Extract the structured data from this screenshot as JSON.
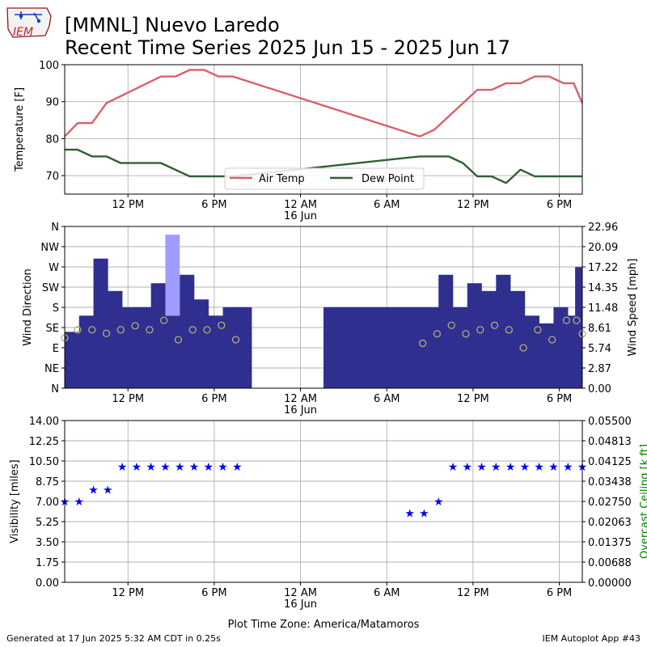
{
  "header": {
    "title_line1": "[MMNL] Nuevo Laredo",
    "title_line2": "Recent Time Series 2025 Jun 15 - 2025 Jun 17",
    "logo_text": "IEM"
  },
  "footer": {
    "generated": "Generated at 17 Jun 2025 5:32 AM CDT in 0.25s",
    "app": "IEM Autoplot App #43",
    "timezone_label": "Plot Time Zone: America/Matamoros"
  },
  "chart_data": [
    {
      "type": "line",
      "ylabel": "Temperature [F]",
      "ylim": [
        65,
        100
      ],
      "yticks": [
        70,
        80,
        90,
        100
      ],
      "x_hours": [
        7.6,
        43.6
      ],
      "xticks": [
        {
          "hour": 12,
          "label": "12 PM"
        },
        {
          "hour": 18,
          "label": "6 PM"
        },
        {
          "hour": 24,
          "label": "12 AM",
          "sublabel": "16 Jun"
        },
        {
          "hour": 30,
          "label": "6 AM"
        },
        {
          "hour": 36,
          "label": "12 PM"
        },
        {
          "hour": 42,
          "label": "6 PM"
        }
      ],
      "grid": true,
      "legend_position": "bottom-center",
      "series": [
        {
          "name": "Air Temp",
          "color": "#d9606a",
          "points": [
            [
              7.6,
              80.6
            ],
            [
              8.5,
              84.2
            ],
            [
              9.5,
              84.2
            ],
            [
              10.5,
              89.6
            ],
            [
              14.3,
              96.8
            ],
            [
              15.3,
              96.8
            ],
            [
              16.3,
              98.6
            ],
            [
              17.3,
              98.6
            ],
            [
              18.3,
              96.8
            ],
            [
              19.3,
              96.8
            ],
            [
              32.3,
              80.6
            ],
            [
              33.3,
              82.4
            ],
            [
              36.3,
              93.2
            ],
            [
              37.3,
              93.2
            ],
            [
              38.3,
              95.0
            ],
            [
              39.3,
              95.0
            ],
            [
              40.3,
              96.8
            ],
            [
              41.3,
              96.8
            ],
            [
              42.3,
              95.0
            ],
            [
              43.0,
              95.0
            ],
            [
              43.6,
              89.6
            ]
          ]
        },
        {
          "name": "Dew Point",
          "color": "#2f6131",
          "points": [
            [
              7.6,
              77.0
            ],
            [
              8.5,
              77.0
            ],
            [
              9.5,
              75.2
            ],
            [
              10.5,
              75.2
            ],
            [
              11.5,
              73.4
            ],
            [
              14.3,
              73.4
            ],
            [
              16.3,
              69.8
            ],
            [
              19.3,
              69.8
            ],
            [
              32.3,
              75.2
            ],
            [
              34.3,
              75.2
            ],
            [
              35.3,
              73.4
            ],
            [
              36.3,
              69.8
            ],
            [
              37.3,
              69.8
            ],
            [
              38.3,
              68.0
            ],
            [
              39.3,
              71.6
            ],
            [
              40.3,
              69.8
            ],
            [
              43.6,
              69.8
            ]
          ]
        }
      ]
    },
    {
      "type": "bar",
      "ylabel": "Wind Direction",
      "y2label": "Wind Speed [mph]",
      "direction_ticks": [
        "N",
        "NE",
        "E",
        "SE",
        "S",
        "SW",
        "W",
        "NW",
        "N"
      ],
      "ylim": [
        0,
        22.96
      ],
      "speed_ticks": [
        "0.00",
        "2.87",
        "5.74",
        "8.61",
        "11.48",
        "14.35",
        "17.22",
        "20.09",
        "22.96"
      ],
      "grid": true,
      "bar_color": "#2f2f8f",
      "gust_color": "#a09cff",
      "wind_bars": [
        {
          "start": 7.6,
          "end": 8.1,
          "speed": 8.0
        },
        {
          "start": 8.1,
          "end": 8.6,
          "speed": 8.0
        },
        {
          "start": 8.6,
          "end": 9.6,
          "speed": 10.3
        },
        {
          "start": 9.6,
          "end": 10.6,
          "speed": 18.4
        },
        {
          "start": 10.6,
          "end": 11.6,
          "speed": 13.8
        },
        {
          "start": 11.6,
          "end": 12.6,
          "speed": 11.5
        },
        {
          "start": 12.6,
          "end": 13.6,
          "speed": 11.5
        },
        {
          "start": 13.6,
          "end": 14.6,
          "speed": 14.9
        },
        {
          "start": 14.6,
          "end": 15.6,
          "speed": 10.3
        },
        {
          "start": 15.6,
          "end": 16.6,
          "speed": 16.1
        },
        {
          "start": 16.6,
          "end": 17.6,
          "speed": 12.6
        },
        {
          "start": 17.6,
          "end": 18.6,
          "speed": 10.3
        },
        {
          "start": 18.6,
          "end": 19.6,
          "speed": 11.5
        },
        {
          "start": 19.6,
          "end": 20.6,
          "speed": 11.5
        },
        {
          "start": 25.6,
          "end": 33.6,
          "speed": 11.5
        },
        {
          "start": 33.6,
          "end": 34.6,
          "speed": 16.1
        },
        {
          "start": 34.6,
          "end": 35.6,
          "speed": 11.5
        },
        {
          "start": 35.6,
          "end": 36.6,
          "speed": 14.9
        },
        {
          "start": 36.6,
          "end": 37.6,
          "speed": 13.8
        },
        {
          "start": 37.6,
          "end": 38.6,
          "speed": 16.1
        },
        {
          "start": 38.6,
          "end": 39.6,
          "speed": 13.8
        },
        {
          "start": 39.6,
          "end": 40.6,
          "speed": 10.3
        },
        {
          "start": 40.6,
          "end": 41.6,
          "speed": 9.2
        },
        {
          "start": 41.6,
          "end": 42.6,
          "speed": 11.5
        },
        {
          "start": 42.6,
          "end": 43.1,
          "speed": 10.3
        },
        {
          "start": 43.1,
          "end": 43.6,
          "speed": 17.2
        }
      ],
      "gust_bars": [
        {
          "start": 14.6,
          "end": 15.6,
          "low": 10.3,
          "high": 21.8
        }
      ],
      "direction_points": [
        {
          "hour": 7.6,
          "deg": 112
        },
        {
          "hour": 8.5,
          "deg": 130
        },
        {
          "hour": 9.5,
          "deg": 130
        },
        {
          "hour": 10.5,
          "deg": 122
        },
        {
          "hour": 11.5,
          "deg": 130
        },
        {
          "hour": 12.5,
          "deg": 139
        },
        {
          "hour": 13.5,
          "deg": 130
        },
        {
          "hour": 14.5,
          "deg": 151
        },
        {
          "hour": 15.5,
          "deg": 108
        },
        {
          "hour": 16.5,
          "deg": 130
        },
        {
          "hour": 17.5,
          "deg": 130
        },
        {
          "hour": 18.5,
          "deg": 140
        },
        {
          "hour": 19.5,
          "deg": 108
        },
        {
          "hour": 32.5,
          "deg": 100
        },
        {
          "hour": 33.5,
          "deg": 121
        },
        {
          "hour": 34.5,
          "deg": 140
        },
        {
          "hour": 35.5,
          "deg": 121
        },
        {
          "hour": 36.5,
          "deg": 130
        },
        {
          "hour": 37.5,
          "deg": 140
        },
        {
          "hour": 38.5,
          "deg": 130
        },
        {
          "hour": 39.5,
          "deg": 90
        },
        {
          "hour": 40.5,
          "deg": 130
        },
        {
          "hour": 41.5,
          "deg": 108
        },
        {
          "hour": 42.5,
          "deg": 151
        },
        {
          "hour": 43.2,
          "deg": 151
        },
        {
          "hour": 43.6,
          "deg": 121
        }
      ],
      "direction_marker_color": "#b3ac78"
    },
    {
      "type": "scatter",
      "ylabel": "Visibility [miles]",
      "y2label": "Overcast Ceiling [k ft]",
      "ylim": [
        0,
        14
      ],
      "yticks": [
        "0.00",
        "1.75",
        "3.50",
        "5.25",
        "7.00",
        "8.75",
        "10.50",
        "12.25",
        "14.00"
      ],
      "y2ticks": [
        "0.00000",
        "0.00688",
        "0.01375",
        "0.02063",
        "0.02750",
        "0.03438",
        "0.04125",
        "0.04813",
        "0.05500"
      ],
      "grid": true,
      "marker_color": "#0000ee",
      "y2label_color": "#008000",
      "points": [
        {
          "hour": 7.6,
          "vis": 7
        },
        {
          "hour": 8.6,
          "vis": 7
        },
        {
          "hour": 9.6,
          "vis": 8
        },
        {
          "hour": 10.6,
          "vis": 8
        },
        {
          "hour": 11.6,
          "vis": 10
        },
        {
          "hour": 12.6,
          "vis": 10
        },
        {
          "hour": 13.6,
          "vis": 10
        },
        {
          "hour": 14.6,
          "vis": 10
        },
        {
          "hour": 15.6,
          "vis": 10
        },
        {
          "hour": 16.6,
          "vis": 10
        },
        {
          "hour": 17.6,
          "vis": 10
        },
        {
          "hour": 18.6,
          "vis": 10
        },
        {
          "hour": 19.6,
          "vis": 10
        },
        {
          "hour": 31.6,
          "vis": 6
        },
        {
          "hour": 32.6,
          "vis": 6
        },
        {
          "hour": 33.6,
          "vis": 7
        },
        {
          "hour": 34.6,
          "vis": 10
        },
        {
          "hour": 35.6,
          "vis": 10
        },
        {
          "hour": 36.6,
          "vis": 10
        },
        {
          "hour": 37.6,
          "vis": 10
        },
        {
          "hour": 38.6,
          "vis": 10
        },
        {
          "hour": 39.6,
          "vis": 10
        },
        {
          "hour": 40.6,
          "vis": 10
        },
        {
          "hour": 41.6,
          "vis": 10
        },
        {
          "hour": 42.6,
          "vis": 10
        },
        {
          "hour": 43.6,
          "vis": 10
        }
      ]
    }
  ]
}
